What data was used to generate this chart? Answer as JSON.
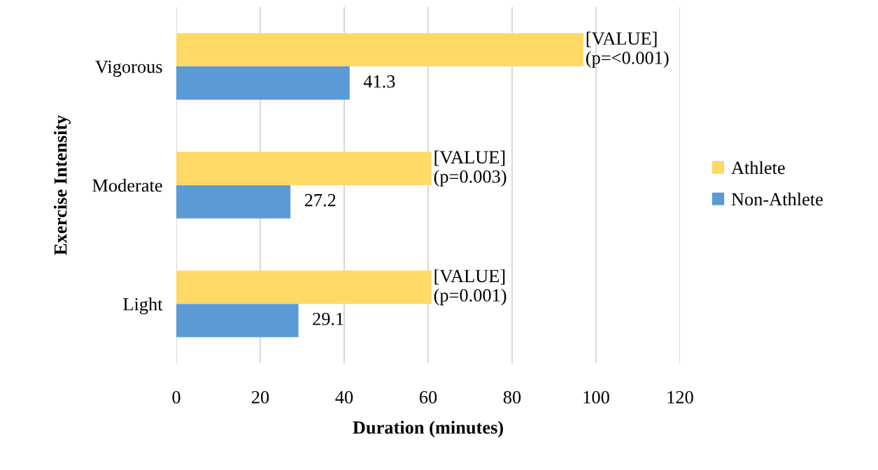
{
  "chart_data": {
    "type": "bar",
    "orientation": "horizontal",
    "xlabel": "Duration (minutes)",
    "ylabel": "Exercise Intensity",
    "categories": [
      "Vigorous",
      "Moderate",
      "Light"
    ],
    "series": [
      {
        "name": "Athlete",
        "color": "#ffd966",
        "values": [
          97.0,
          60.8,
          60.8
        ]
      },
      {
        "name": "Non-Athlete",
        "color": "#5b9bd5",
        "values": [
          41.3,
          27.2,
          29.1
        ],
        "value_labels": [
          "41.3",
          "27.2",
          "29.1"
        ]
      }
    ],
    "annotations": [
      "[VALUE]\n(p=<0.001)",
      "[VALUE]\n(p=0.003)",
      "[VALUE]\n(p=0.001)"
    ],
    "xlim": [
      0,
      120
    ],
    "xticks": [
      0,
      20,
      40,
      60,
      80,
      100,
      120
    ],
    "grid": "x",
    "legend": "right"
  }
}
